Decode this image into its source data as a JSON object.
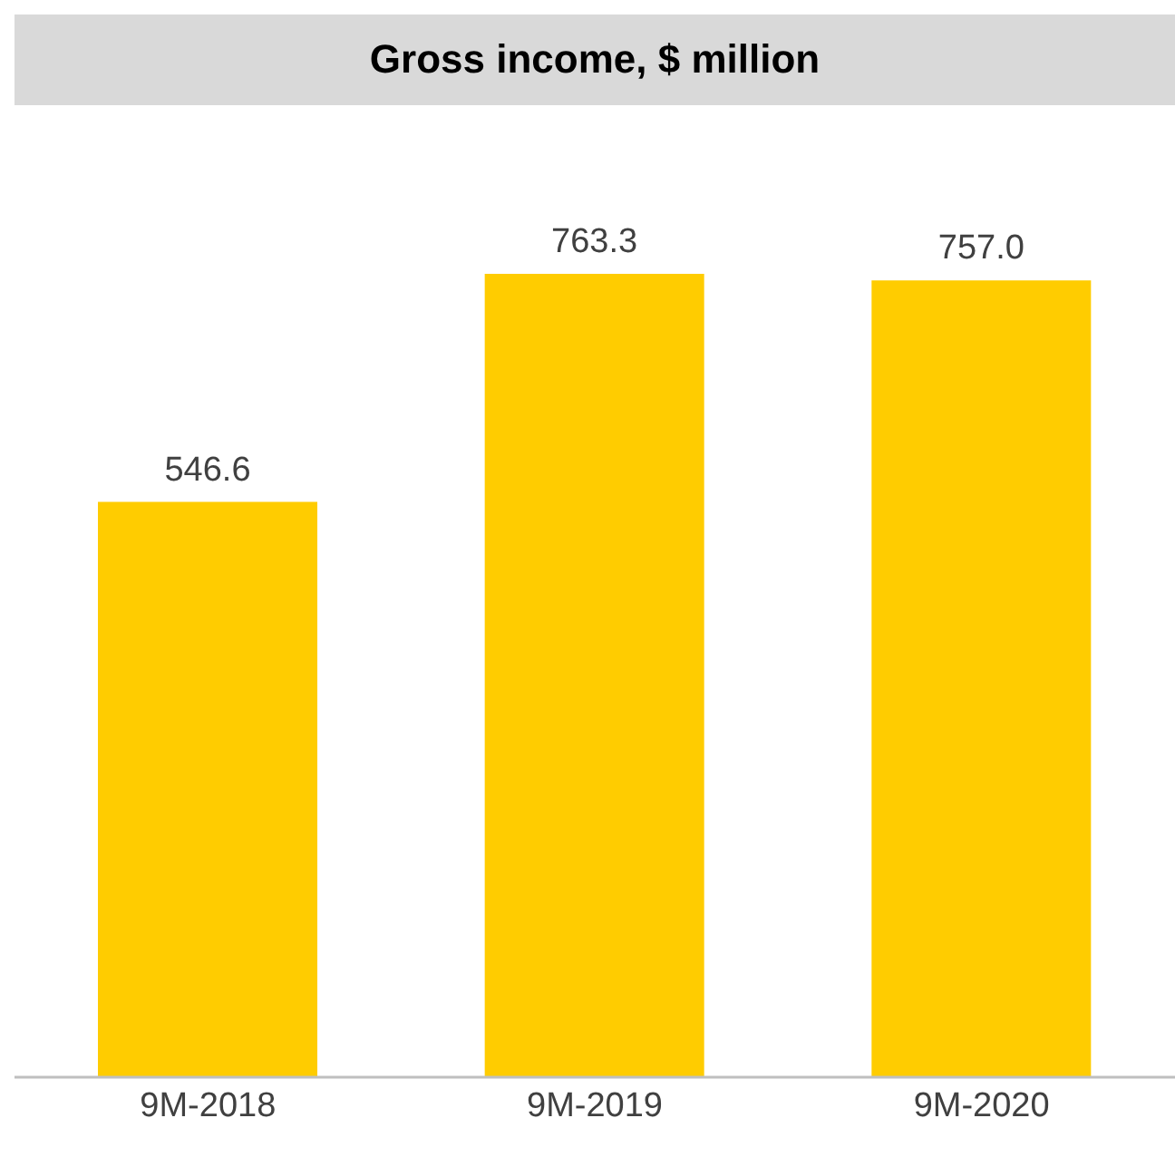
{
  "chart_data": {
    "type": "bar",
    "title": "Gross income, $ million",
    "categories": [
      "9M-2018",
      "9M-2019",
      "9M-2020"
    ],
    "values": [
      546.6,
      763.3,
      757.0
    ],
    "value_labels": [
      "546.6",
      "763.3",
      "757.0"
    ],
    "color": "#ffcc00"
  }
}
